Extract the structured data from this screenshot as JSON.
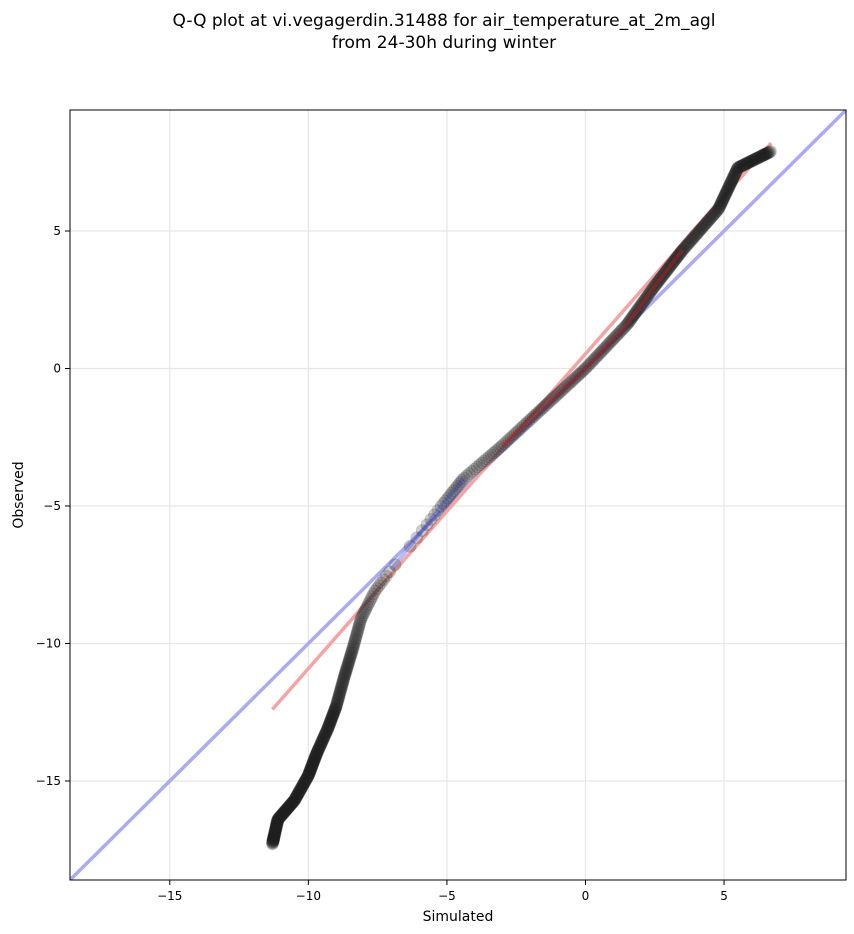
{
  "chart_data": {
    "type": "scatter",
    "title_line1": "Q-Q plot at vi.vegagerdin.31488 for air_temperature_at_2m_agl",
    "title_line2": "from 24-30h during winter",
    "xlabel": "Simulated",
    "ylabel": "Observed",
    "xlim": [
      -18.6,
      9.4
    ],
    "ylim": [
      -18.6,
      9.4
    ],
    "grid": true,
    "xticks": [
      -15,
      -10,
      -5,
      0,
      5
    ],
    "yticks": [
      -15,
      -10,
      -5,
      0,
      5
    ],
    "xtick_labels": [
      "−15",
      "−10",
      "−5",
      "0",
      "5"
    ],
    "ytick_labels": [
      "−15",
      "−10",
      "−5",
      "0",
      "5"
    ],
    "reference_lines": [
      {
        "role": "one-to-one",
        "color": "#aaaaf5",
        "x": [
          -18.6,
          9.4
        ],
        "y": [
          -18.6,
          9.4
        ]
      },
      {
        "role": "fit",
        "color": "#f5a3a3",
        "x": [
          -11.3,
          6.7
        ],
        "y": [
          -12.4,
          8.2
        ]
      }
    ],
    "colors": {
      "points": "#333333",
      "blue_segment": "#3040d0",
      "red_segment": "#c02020"
    },
    "quantile_profile": [
      [
        -11.3,
        -17.3
      ],
      [
        -11.1,
        -16.4
      ],
      [
        -10.5,
        -15.7
      ],
      [
        -10.0,
        -14.8
      ],
      [
        -9.7,
        -14.0
      ],
      [
        -9.3,
        -13.1
      ],
      [
        -9.0,
        -12.3
      ],
      [
        -8.7,
        -11.2
      ],
      [
        -8.4,
        -10.2
      ],
      [
        -8.1,
        -9.1
      ],
      [
        -7.6,
        -8.1
      ],
      [
        -7.0,
        -7.3
      ],
      [
        -6.2,
        -6.3
      ],
      [
        -5.2,
        -5.0
      ],
      [
        -4.4,
        -4.0
      ],
      [
        -3.0,
        -2.8
      ],
      [
        -1.5,
        -1.4
      ],
      [
        0.0,
        0.0
      ],
      [
        1.5,
        1.6
      ],
      [
        2.5,
        3.0
      ],
      [
        3.5,
        4.3
      ],
      [
        4.8,
        5.8
      ],
      [
        5.5,
        7.3
      ],
      [
        6.7,
        7.9
      ]
    ],
    "point_count": 620
  }
}
